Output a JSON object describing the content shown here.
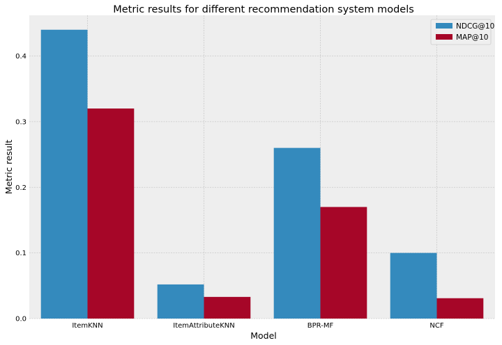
{
  "chart_data": {
    "type": "bar",
    "title": "Metric results for different recommendation system models",
    "xlabel": "Model",
    "ylabel": "Metric result",
    "categories": [
      "ItemKNN",
      "ItemAttributeKNN",
      "BPR-MF",
      "NCF"
    ],
    "series": [
      {
        "name": "NDCG@10",
        "values": [
          0.44,
          0.052,
          0.26,
          0.1
        ],
        "color": "#348abd"
      },
      {
        "name": "MAP@10",
        "values": [
          0.32,
          0.033,
          0.17,
          0.031
        ],
        "color": "#a60628"
      }
    ],
    "ylim": [
      0,
      0.462
    ],
    "yticks": [
      {
        "value": 0.0,
        "label": "0.0"
      },
      {
        "value": 0.1,
        "label": "0.1"
      },
      {
        "value": 0.2,
        "label": "0.2"
      },
      {
        "value": 0.3,
        "label": "0.3"
      },
      {
        "value": 0.4,
        "label": "0.4"
      }
    ],
    "grid": true,
    "legend_position": "top-right",
    "background_color": "#eeeeee",
    "grid_color": "#c8c8c8"
  }
}
